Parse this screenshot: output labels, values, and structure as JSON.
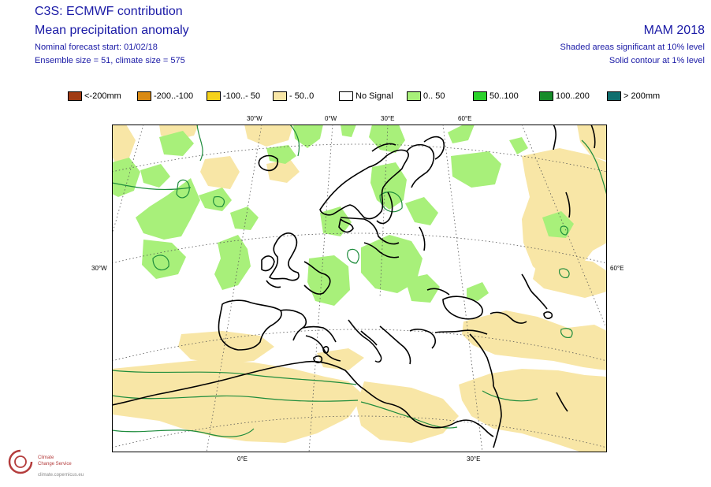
{
  "header": {
    "title1": "C3S: ECMWF contribution",
    "title2": "Mean precipitation anomaly",
    "forecast_start": "Nominal forecast start: 01/02/18",
    "ensemble": "Ensemble size = 51, climate size = 575",
    "season": "MAM 2018",
    "shaded_note": "Shaded areas significant at 10% level",
    "contour_note": "Solid contour at 1% level"
  },
  "legend": [
    {
      "label": "<-200mm",
      "color": "#a03c14"
    },
    {
      "label": "-200..-100",
      "color": "#d98a14"
    },
    {
      "label": "-100..- 50",
      "color": "#f5d21c"
    },
    {
      "label": "- 50..0",
      "color": "#f8e6a6"
    },
    {
      "label": "No Signal",
      "color": "#ffffff"
    },
    {
      "label": "0.. 50",
      "color": "#a8f07a"
    },
    {
      "label": "50..100",
      "color": "#2ad22a"
    },
    {
      "label": "100..200",
      "color": "#168c2a"
    },
    {
      "label": "> 200mm",
      "color": "#0f6e6e"
    }
  ],
  "axis_labels": {
    "top": [
      "30°W",
      "0°W",
      "30°E",
      "60°E"
    ],
    "left": "30°W",
    "right": "60°E",
    "bottom": [
      "0°E",
      "30°E"
    ]
  },
  "logo": {
    "line1": "Climate",
    "line2": "Change Service",
    "line3": "climate.copernicus.eu"
  },
  "colors": {
    "title_text": "#1a1aa6",
    "wet_shade": "#a8f07a",
    "dry_shade": "#f8e6a6",
    "contour_green": "#1e8c3c",
    "coastline": "#000000",
    "graticule": "#555555"
  }
}
